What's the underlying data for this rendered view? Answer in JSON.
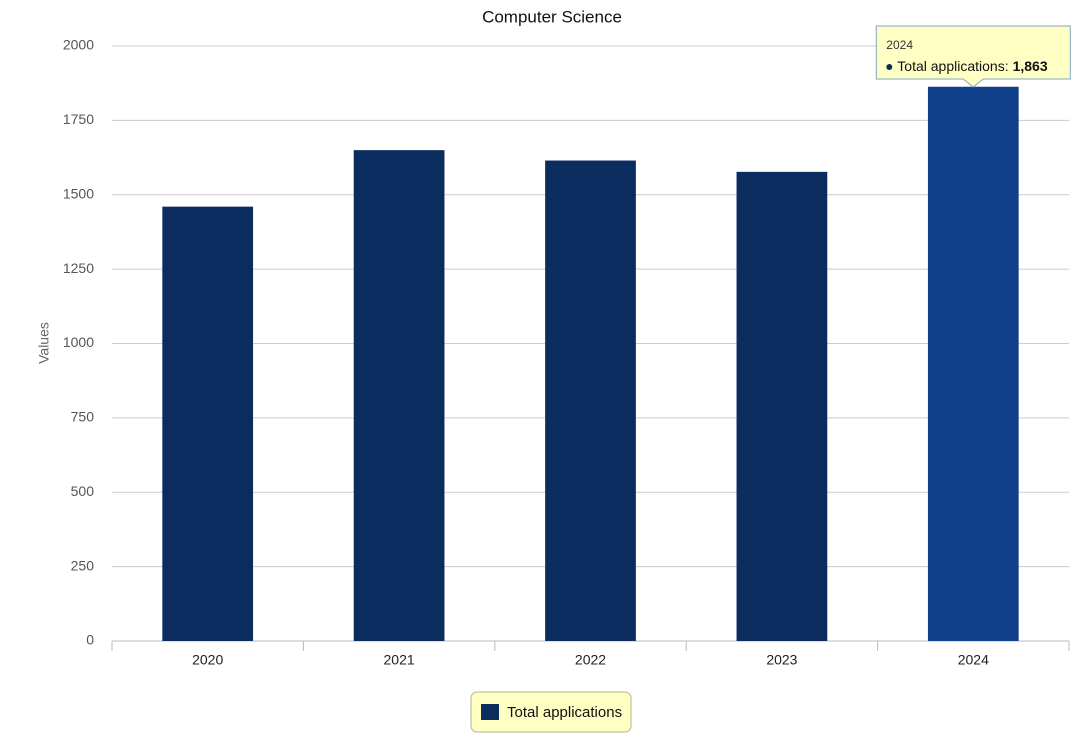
{
  "chart_data": {
    "type": "bar",
    "title": "Computer Science",
    "y_label": "Values",
    "categories": [
      "2020",
      "2021",
      "2022",
      "2023",
      "2024"
    ],
    "series": [
      {
        "name": "Total applications",
        "color": "#0b2c5f",
        "values": [
          1460,
          1650,
          1615,
          1577,
          1863
        ]
      }
    ],
    "ylim": [
      0,
      2000
    ],
    "yticks": [
      0,
      250,
      500,
      750,
      1000,
      1250,
      1500,
      1750,
      2000
    ],
    "grid": true,
    "legend": "bottom",
    "tooltip": {
      "title": "2024",
      "series_label": "Total applications:",
      "value_label": "1,863"
    }
  }
}
